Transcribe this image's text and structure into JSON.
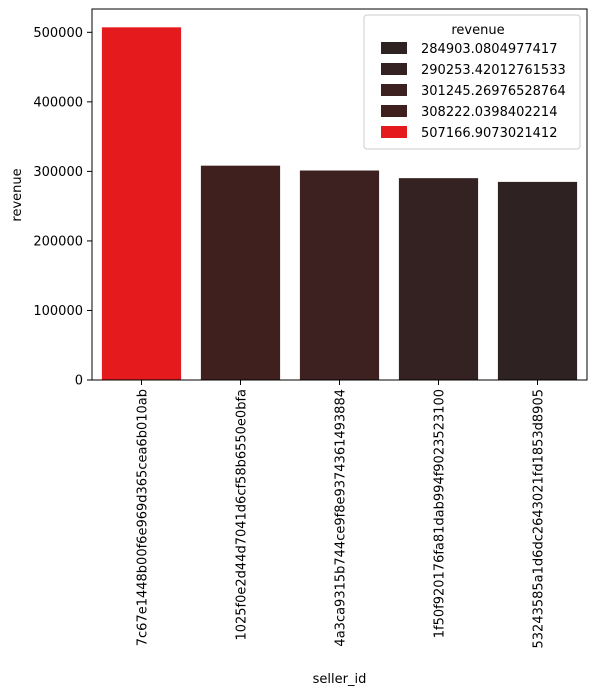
{
  "chart_data": {
    "type": "bar",
    "xlabel": "seller_id",
    "ylabel": "revenue",
    "ylim": [
      0,
      533525
    ],
    "yticks": [
      0,
      100000,
      200000,
      300000,
      400000,
      500000
    ],
    "grid": false,
    "categories": [
      "7c67e1448b00f6e969d365cea6b010ab",
      "1025f0e2d44d7041d6cf58b6550e0bfa",
      "4a3ca9315b744ce9f8e9374361493884",
      "1f50f920176fa81dab994f9023523100",
      "53243585a1d6dc2643021fd1853d8905"
    ],
    "values": [
      507166.9073021412,
      308222.0398402214,
      301245.26976528764,
      290253.42012761533,
      284903.0804977417
    ],
    "bar_colors": [
      "#e41a1c",
      "#40201f",
      "#3c2120",
      "#342121",
      "#2e2222"
    ],
    "legend": {
      "title": "revenue",
      "position": "top-right",
      "entries": [
        {
          "label": "284903.0804977417",
          "color": "#2e2222"
        },
        {
          "label": "290253.42012761533",
          "color": "#342121"
        },
        {
          "label": "301245.26976528764",
          "color": "#3c2120"
        },
        {
          "label": "308222.0398402214",
          "color": "#40201f"
        },
        {
          "label": "507166.9073021412",
          "color": "#e41a1c"
        }
      ]
    }
  }
}
